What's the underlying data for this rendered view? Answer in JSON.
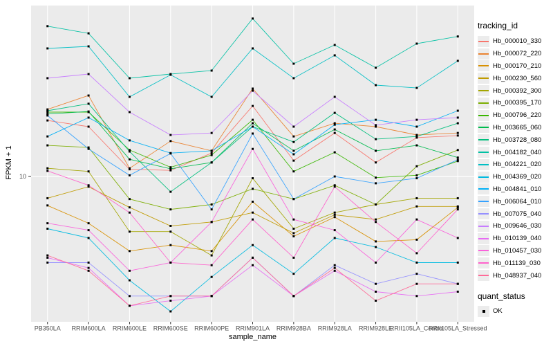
{
  "chart_data": {
    "type": "line",
    "title": "",
    "x_axis": {
      "label": "sample_name"
    },
    "y_axis": {
      "label": "FPKM + 1",
      "scale": "log10",
      "ticks": [
        10
      ],
      "ylim": [
        0.85,
        185
      ]
    },
    "grid": "on",
    "legend_title": "tracking_id",
    "legend_position": "right",
    "quant_status": {
      "title": "quant_status",
      "items": [
        "OK"
      ],
      "marker": "black-square"
    },
    "categories": [
      "PB350LA",
      "RRIM600LA",
      "RRIM600LE",
      "RRIM600SE",
      "RRIM600PE",
      "RRIM901LA",
      "RRIM928BA",
      "RRIM928LA",
      "RRIM928LE",
      "RRII105LA_Control",
      "RRII105LA_Stressed"
    ],
    "series": [
      {
        "id": "Hb_000010_330",
        "color": "#F8766D",
        "values": [
          26.0,
          23.4,
          11.3,
          11.1,
          14.9,
          33.3,
          13.1,
          21.0,
          12.7,
          19.4,
          20.1
        ]
      },
      {
        "id": "Hb_000072_220",
        "color": "#EA8331",
        "values": [
          31.4,
          39.8,
          11.5,
          18.3,
          15.5,
          44.8,
          19.8,
          24.8,
          23.4,
          20.3,
          21.0
        ]
      },
      {
        "id": "Hb_000170_210",
        "color": "#D89000",
        "values": [
          6.1,
          4.5,
          2.8,
          3.1,
          2.8,
          6.5,
          3.6,
          5.0,
          3.3,
          3.4,
          5.9
        ]
      },
      {
        "id": "Hb_000230_560",
        "color": "#C09B00",
        "values": [
          6.9,
          8.4,
          5.9,
          4.3,
          4.6,
          5.4,
          3.8,
          5.2,
          4.8,
          6.0,
          6.0
        ]
      },
      {
        "id": "Hb_000392_300",
        "color": "#A3A500",
        "values": [
          11.5,
          10.9,
          3.9,
          3.9,
          2.6,
          9.7,
          4.1,
          5.4,
          6.2,
          6.9,
          6.9
        ]
      },
      {
        "id": "Hb_000395_170",
        "color": "#7CAE00",
        "values": [
          17.0,
          16.4,
          6.8,
          5.7,
          6.2,
          8.1,
          6.8,
          8.6,
          6.2,
          11.9,
          15.7
        ]
      },
      {
        "id": "Hb_000796_220",
        "color": "#39B600",
        "values": [
          30.0,
          30.0,
          15.7,
          11.7,
          14.4,
          26.3,
          10.9,
          15.1,
          9.8,
          10.2,
          13.0
        ]
      },
      {
        "id": "Hb_003665_060",
        "color": "#00BB4E",
        "values": [
          29.0,
          30.3,
          13.4,
          11.4,
          12.7,
          24.8,
          15.5,
          22.3,
          15.5,
          17.0,
          13.8
        ]
      },
      {
        "id": "Hb_003728_080",
        "color": "#00BF7D",
        "values": [
          30.7,
          34.6,
          15.3,
          7.7,
          12.7,
          23.4,
          18.0,
          29.6,
          18.9,
          19.8,
          24.8
        ]
      },
      {
        "id": "Hb_004182_040",
        "color": "#00C1A3",
        "values": [
          130,
          115,
          53.5,
          57.4,
          60.9,
          148,
          68.5,
          94.3,
          63.9,
          96.5,
          109
        ]
      },
      {
        "id": "Hb_004221_020",
        "color": "#00BFC4",
        "values": [
          88.9,
          92.1,
          38.9,
          56.7,
          38.9,
          88.9,
          53.5,
          79.0,
          47.5,
          45.3,
          71.9
        ]
      },
      {
        "id": "Hb_004369_020",
        "color": "#00BAE0",
        "values": [
          4.1,
          3.5,
          1.7,
          1.0,
          1.8,
          3.1,
          1.9,
          3.5,
          3.0,
          2.3,
          2.3
        ]
      },
      {
        "id": "Hb_004841_010",
        "color": "#00B0F6",
        "values": [
          19.8,
          27.3,
          18.5,
          14.9,
          15.5,
          23.4,
          14.6,
          24.2,
          26.3,
          23.4,
          30.7
        ]
      },
      {
        "id": "Hb_006064_010",
        "color": "#35A2FF",
        "values": [
          28.3,
          16.0,
          10.2,
          14.8,
          5.7,
          20.8,
          6.8,
          10.0,
          8.9,
          9.7,
          13.3
        ]
      },
      {
        "id": "Hb_007075_040",
        "color": "#9590FF",
        "values": [
          2.3,
          2.3,
          1.3,
          1.3,
          1.3,
          2.5,
          1.3,
          2.2,
          1.6,
          1.9,
          1.6
        ]
      },
      {
        "id": "Hb_009646_030",
        "color": "#C77CFF",
        "values": [
          53.5,
          57.4,
          30.0,
          20.3,
          21.0,
          43.2,
          23.4,
          38.9,
          24.0,
          26.3,
          27.3
        ]
      },
      {
        "id": "Hb_010139_040",
        "color": "#E76BF3",
        "values": [
          2.5,
          2.1,
          1.1,
          1.2,
          1.3,
          2.2,
          1.3,
          2.0,
          1.4,
          1.3,
          1.4
        ]
      },
      {
        "id": "Hb_010457_030",
        "color": "#FA62DB",
        "values": [
          4.5,
          4.0,
          2.0,
          2.3,
          4.6,
          16.0,
          4.8,
          4.0,
          2.3,
          4.8,
          3.5
        ]
      },
      {
        "id": "Hb_011139_030",
        "color": "#FF61CC",
        "values": [
          11.0,
          8.6,
          5.4,
          2.3,
          2.2,
          4.8,
          2.5,
          8.4,
          4.6,
          2.7,
          5.7
        ]
      },
      {
        "id": "Hb_048937_040",
        "color": "#FF6A98",
        "values": [
          2.6,
          2.0,
          1.1,
          1.3,
          1.3,
          2.5,
          1.3,
          2.1,
          1.2,
          1.6,
          1.6
        ]
      }
    ],
    "panel_background": "#EBEBEB",
    "gridline_color": "#FFFFFF",
    "point_color": "#000000",
    "tick_label_color": "#4d4d4d"
  }
}
